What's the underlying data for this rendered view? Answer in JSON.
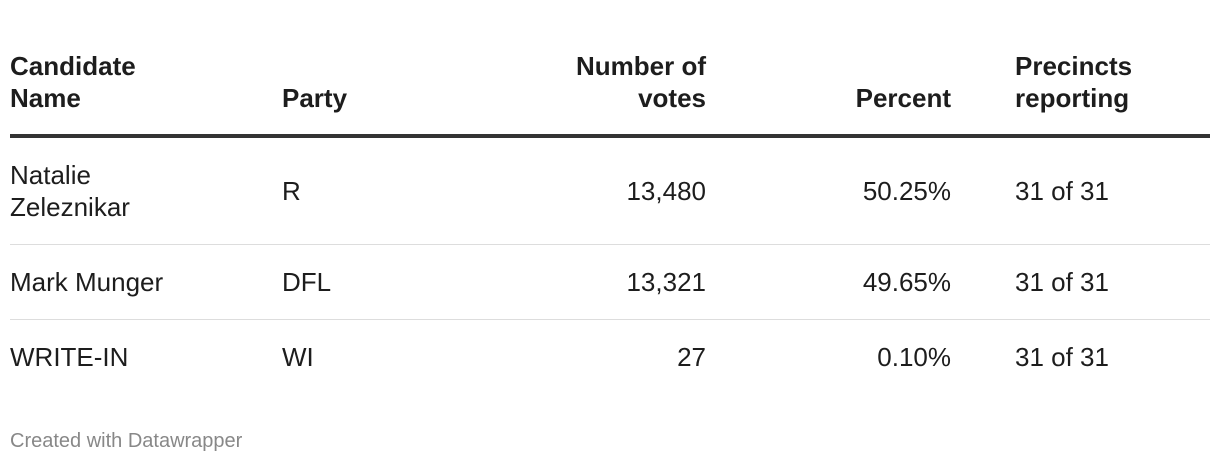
{
  "table": {
    "columns": [
      "Candidate Name",
      "Party",
      "Number of votes",
      "Percent",
      "Precincts reporting"
    ],
    "rows": [
      [
        "Natalie Zeleznikar",
        "R",
        "13,480",
        "50.25%",
        "31 of 31"
      ],
      [
        "Mark Munger",
        "DFL",
        "13,321",
        "49.65%",
        "31 of 31"
      ],
      [
        "WRITE-IN",
        "WI",
        "27",
        "0.10%",
        "31 of 31"
      ]
    ]
  },
  "footer": "Created with Datawrapper"
}
